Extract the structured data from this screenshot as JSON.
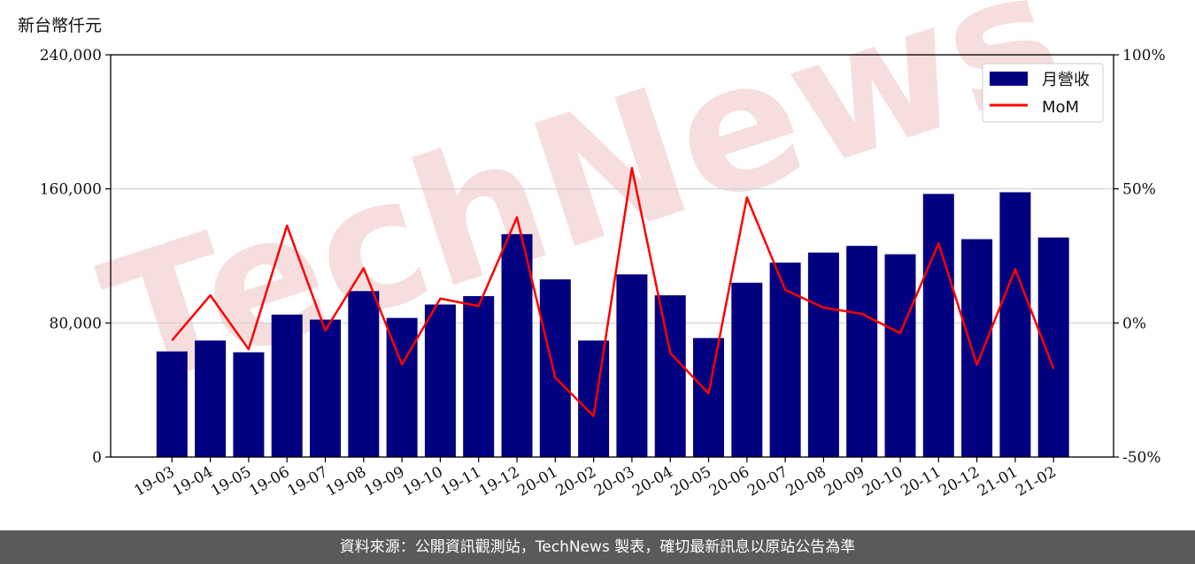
{
  "chart_data": {
    "type": "bar",
    "ylabel": "新台幣仟元",
    "categories": [
      "19-03",
      "19-04",
      "19-05",
      "19-06",
      "19-07",
      "19-08",
      "19-09",
      "19-10",
      "19-11",
      "19-12",
      "20-01",
      "20-02",
      "20-03",
      "20-04",
      "20-05",
      "20-06",
      "20-07",
      "20-08",
      "20-09",
      "20-10",
      "20-11",
      "20-12",
      "21-01",
      "21-02"
    ],
    "series": [
      {
        "name": "月營收",
        "axis": "left",
        "type": "bar",
        "color": "#000080",
        "values": [
          63000,
          69500,
          62500,
          85000,
          82000,
          99000,
          83000,
          91000,
          96000,
          133000,
          106000,
          69500,
          109000,
          96500,
          71000,
          104000,
          116000,
          122000,
          126000,
          121000,
          157000,
          130000,
          158000,
          131000
        ]
      },
      {
        "name": "MoM",
        "axis": "right",
        "type": "line",
        "color": "#ff0000",
        "values": [
          -6.5,
          10.3,
          -9.8,
          36.3,
          -2.8,
          20.4,
          -15.5,
          9.1,
          6.3,
          39.4,
          -20.4,
          -34.7,
          57.8,
          -11.2,
          -26.3,
          46.8,
          12.3,
          5.7,
          3.4,
          -3.8,
          29.7,
          -15.6,
          20.1,
          -17.1
        ]
      }
    ],
    "ylim": [
      0,
      240000
    ],
    "yticks": [
      "0",
      "80,000",
      "160,000",
      "240,000"
    ],
    "y2lim": [
      -50,
      100
    ],
    "y2ticks": [
      "-50%",
      "0%",
      "50%",
      "100%"
    ],
    "grid": "horizontal",
    "legend": "top-right"
  },
  "watermark": "TechNews",
  "footer": "資料來源：公開資訊觀測站，TechNews 製表，確切最新訊息以原站公告為準"
}
